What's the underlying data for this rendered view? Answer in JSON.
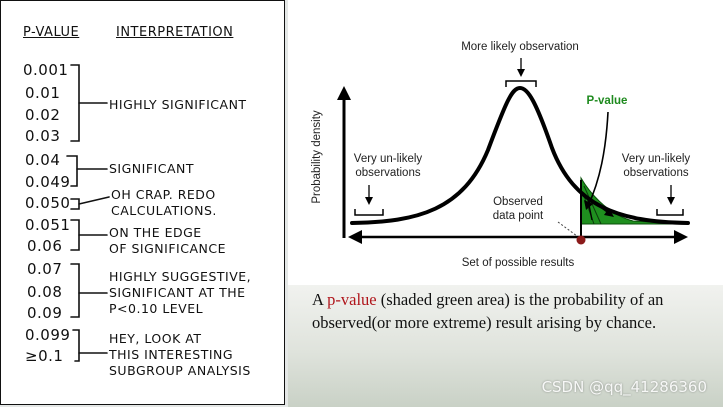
{
  "table": {
    "header_pvalue": "P-VALUE",
    "header_interpretation": "INTERPRETATION",
    "pvalues": [
      "0.001",
      "0.01",
      "0.02",
      "0.03",
      "0.04",
      "0.049",
      "0.050",
      "0.051",
      "0.06",
      "0.07",
      "0.08",
      "0.09",
      "0.099",
      "≥0.1"
    ],
    "interpretations": [
      [
        "HIGHLY SIGNIFICANT"
      ],
      [
        "SIGNIFICANT"
      ],
      [
        "OH CRAP. REDO",
        "CALCULATIONS."
      ],
      [
        "ON THE EDGE",
        "OF SIGNIFICANCE"
      ],
      [
        "HIGHLY SUGGESTIVE,",
        "SIGNIFICANT AT THE",
        "P<0.10 LEVEL"
      ],
      [
        "HEY, LOOK AT",
        "THIS INTERESTING",
        "SUBGROUP ANALYSIS"
      ]
    ]
  },
  "diagram": {
    "y_axis_label": "Probability density",
    "x_axis_label": "Set of possible results",
    "top_label": "More likely observation",
    "pvalue_label": "P-value",
    "left_tail_label": [
      "Very un-likely",
      "observations"
    ],
    "right_tail_label": [
      "Very un-likely",
      "observations"
    ],
    "observed_label": [
      "Observed",
      "data point"
    ],
    "colors": {
      "curve": "#000000",
      "shade": "#1f8f1f",
      "pvalue_text": "#1e8a1e",
      "point": "#8b1a1a"
    }
  },
  "caption": {
    "part1": "A ",
    "highlight": "p-value",
    "part2": " (shaded green area) is the probability of an observed(or more extreme) result arising by chance."
  },
  "watermark": "CSDN @qq_41286360"
}
